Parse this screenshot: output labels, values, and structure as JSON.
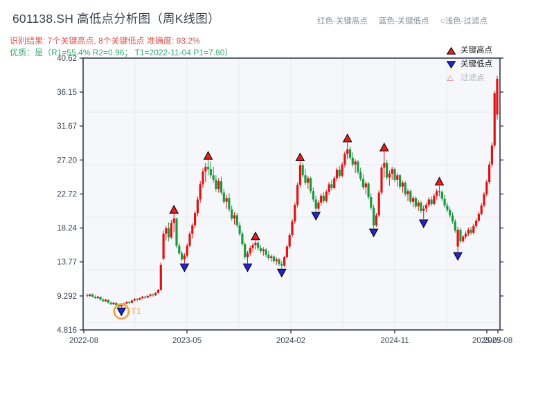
{
  "header": {
    "title": "601138.SH 高低点分析图（周K线图）",
    "result_line": "识别结果: 7个关键高点, 8个关键低点  准确度: 93.2%",
    "quality_line": "优质：是（R1=55.4%  R2=0.96； T1=2022-11-04 P1=7.80）",
    "legend_inline": [
      {
        "label": "红色-关键高点"
      },
      {
        "label": "蓝色-关键低点"
      },
      {
        "label": "○浅色-过滤点"
      }
    ]
  },
  "chart_legend": {
    "high_label": "关键高点",
    "low_label": "关键低点",
    "filtered_label": "过滤点"
  },
  "colors": {
    "up_candle": "#e01212",
    "down_candle": "#169a3c",
    "key_high_marker": "#e41f1f",
    "key_low_marker": "#2323d2",
    "marker_edge": "#000000",
    "t1_ring": "#f0a13c",
    "t1_text": "#f3bd7e",
    "result_text": "#e04f4a",
    "quality_text": "#3aa873",
    "legend_gray": "#838d97",
    "axis_text": "#3e4655",
    "spine": "#2e3950",
    "plot_bg": "#f6f7fa",
    "grid": "#e5e8ee"
  },
  "chart_data": {
    "type": "candlestick",
    "symbol": "601138.SH",
    "period": "weekly",
    "title": "601138.SH 高低点分析图（周K线图）",
    "ylim": [
      4.816,
      40.62
    ],
    "y_ticks": [
      {
        "value": 40.62,
        "label": "40.62"
      },
      {
        "value": 36.15,
        "label": "36.15"
      },
      {
        "value": 31.67,
        "label": "31.67"
      },
      {
        "value": 27.2,
        "label": "27.20"
      },
      {
        "value": 22.72,
        "label": "22.72"
      },
      {
        "value": 18.24,
        "label": "18.24"
      },
      {
        "value": 13.77,
        "label": "13.77"
      },
      {
        "value": 9.292,
        "label": "9.292"
      },
      {
        "value": 4.816,
        "label": "4.816"
      }
    ],
    "x_ticks": [
      {
        "px": 121,
        "label": "2022-08"
      },
      {
        "px": 270,
        "label": "2023-05"
      },
      {
        "px": 420,
        "label": "2024-02"
      },
      {
        "px": 570,
        "label": "2024-11"
      },
      {
        "px": 703,
        "label": "2025-07"
      },
      {
        "px": 719,
        "label": "2025-08"
      }
    ],
    "candles": [
      [
        9.4,
        9.6,
        9.1,
        9.3
      ],
      [
        9.3,
        9.6,
        9.2,
        9.5
      ],
      [
        9.5,
        9.6,
        9.1,
        9.2
      ],
      [
        9.2,
        9.4,
        8.9,
        9.0
      ],
      [
        9.0,
        9.3,
        8.9,
        9.2
      ],
      [
        9.2,
        9.2,
        8.7,
        8.8
      ],
      [
        8.8,
        9.0,
        8.5,
        8.6
      ],
      [
        8.6,
        8.9,
        8.5,
        8.8
      ],
      [
        8.8,
        8.8,
        8.3,
        8.4
      ],
      [
        8.4,
        8.6,
        8.1,
        8.2
      ],
      [
        8.2,
        8.5,
        8.1,
        8.4
      ],
      [
        8.4,
        8.4,
        8.0,
        8.1
      ],
      [
        8.1,
        8.2,
        7.8,
        7.9
      ],
      [
        7.9,
        8.2,
        7.8,
        8.1
      ],
      [
        8.1,
        8.4,
        8.0,
        8.3
      ],
      [
        8.3,
        8.6,
        8.2,
        8.5
      ],
      [
        8.5,
        8.6,
        8.2,
        8.4
      ],
      [
        8.4,
        8.8,
        8.3,
        8.7
      ],
      [
        8.7,
        9.0,
        8.6,
        8.9
      ],
      [
        8.9,
        9.0,
        8.6,
        8.8
      ],
      [
        8.8,
        9.1,
        8.7,
        9.0
      ],
      [
        9.0,
        9.3,
        8.9,
        9.2
      ],
      [
        9.2,
        9.3,
        8.9,
        9.1
      ],
      [
        9.1,
        9.4,
        9.0,
        9.3
      ],
      [
        9.3,
        9.6,
        9.2,
        9.5
      ],
      [
        9.5,
        9.6,
        9.2,
        9.4
      ],
      [
        9.4,
        9.8,
        9.3,
        9.7
      ],
      [
        9.7,
        10.2,
        9.6,
        10.1
      ],
      [
        10.1,
        13.7,
        10.0,
        13.4
      ],
      [
        14.2,
        17.9,
        14.0,
        17.5
      ],
      [
        17.5,
        18.5,
        16.6,
        18.2
      ],
      [
        18.2,
        19.0,
        16.5,
        17.0
      ],
      [
        17.0,
        19.3,
        16.8,
        18.9
      ],
      [
        18.9,
        20.1,
        17.7,
        19.5
      ],
      [
        19.5,
        19.6,
        15.6,
        15.9
      ],
      [
        15.9,
        16.3,
        14.7,
        14.9
      ],
      [
        14.9,
        15.2,
        13.9,
        14.1
      ],
      [
        14.1,
        14.9,
        13.6,
        14.6
      ],
      [
        14.6,
        16.2,
        14.3,
        15.9
      ],
      [
        15.9,
        17.8,
        15.7,
        17.5
      ],
      [
        17.5,
        18.9,
        16.9,
        18.6
      ],
      [
        18.6,
        20.5,
        18.2,
        20.2
      ],
      [
        20.2,
        22.4,
        19.8,
        22.0
      ],
      [
        22.0,
        24.4,
        21.6,
        24.0
      ],
      [
        24.0,
        26.1,
        23.5,
        25.7
      ],
      [
        25.7,
        26.8,
        24.3,
        26.3
      ],
      [
        26.3,
        27.2,
        25.2,
        26.0
      ],
      [
        26.0,
        27.0,
        24.8,
        25.2
      ],
      [
        25.2,
        26.3,
        24.2,
        24.6
      ],
      [
        24.6,
        25.2,
        23.0,
        23.4
      ],
      [
        23.4,
        24.8,
        22.9,
        24.4
      ],
      [
        24.4,
        25.0,
        22.6,
        22.9
      ],
      [
        22.9,
        23.4,
        21.4,
        21.7
      ],
      [
        21.7,
        22.6,
        20.8,
        22.2
      ],
      [
        22.2,
        22.8,
        20.4,
        20.7
      ],
      [
        20.7,
        21.2,
        19.2,
        19.5
      ],
      [
        19.5,
        20.3,
        18.7,
        19.9
      ],
      [
        19.9,
        20.2,
        18.3,
        18.6
      ],
      [
        18.6,
        19.0,
        17.2,
        17.5
      ],
      [
        17.5,
        17.8,
        15.9,
        16.1
      ],
      [
        16.1,
        16.4,
        14.1,
        14.4
      ],
      [
        14.4,
        15.2,
        13.6,
        14.9
      ],
      [
        14.9,
        15.9,
        14.6,
        15.6
      ],
      [
        15.6,
        16.3,
        15.1,
        16.0
      ],
      [
        16.0,
        16.6,
        15.4,
        16.3
      ],
      [
        16.3,
        16.5,
        15.3,
        15.6
      ],
      [
        15.6,
        16.0,
        14.9,
        15.2
      ],
      [
        15.2,
        15.7,
        14.6,
        15.4
      ],
      [
        15.4,
        15.6,
        14.4,
        14.7
      ],
      [
        14.7,
        15.2,
        14.0,
        14.3
      ],
      [
        14.3,
        14.8,
        13.8,
        14.5
      ],
      [
        14.5,
        14.7,
        13.6,
        13.9
      ],
      [
        13.9,
        14.4,
        13.4,
        14.1
      ],
      [
        14.1,
        14.3,
        13.2,
        13.5
      ],
      [
        13.5,
        13.9,
        12.9,
        13.3
      ],
      [
        13.3,
        14.6,
        13.1,
        14.4
      ],
      [
        14.4,
        16.0,
        14.2,
        15.8
      ],
      [
        15.8,
        17.6,
        15.5,
        17.3
      ],
      [
        17.3,
        19.4,
        17.0,
        19.1
      ],
      [
        19.1,
        21.6,
        18.8,
        21.3
      ],
      [
        21.3,
        24.2,
        21.0,
        23.9
      ],
      [
        23.9,
        27.0,
        23.6,
        26.5
      ],
      [
        26.5,
        26.8,
        24.9,
        25.2
      ],
      [
        25.2,
        26.0,
        23.9,
        24.2
      ],
      [
        24.2,
        25.1,
        23.4,
        24.8
      ],
      [
        24.8,
        25.0,
        22.8,
        23.1
      ],
      [
        23.1,
        23.6,
        21.7,
        22.0
      ],
      [
        22.0,
        22.5,
        20.4,
        20.8
      ],
      [
        20.8,
        21.9,
        20.5,
        21.6
      ],
      [
        21.6,
        22.8,
        21.2,
        22.5
      ],
      [
        22.5,
        23.0,
        21.5,
        21.8
      ],
      [
        21.8,
        23.3,
        21.6,
        23.0
      ],
      [
        23.0,
        24.3,
        22.6,
        24.0
      ],
      [
        24.0,
        24.6,
        23.2,
        23.5
      ],
      [
        23.5,
        25.1,
        23.3,
        24.8
      ],
      [
        24.8,
        26.2,
        24.4,
        25.9
      ],
      [
        25.9,
        26.4,
        24.8,
        25.1
      ],
      [
        25.1,
        26.9,
        24.9,
        26.6
      ],
      [
        26.6,
        28.3,
        26.2,
        28.0
      ],
      [
        28.0,
        29.5,
        27.3,
        28.6
      ],
      [
        28.6,
        29.0,
        27.2,
        27.5
      ],
      [
        27.5,
        28.2,
        26.3,
        26.6
      ],
      [
        26.6,
        27.3,
        25.5,
        27.0
      ],
      [
        27.0,
        27.2,
        25.3,
        25.6
      ],
      [
        25.6,
        26.2,
        24.4,
        24.7
      ],
      [
        24.7,
        25.3,
        23.3,
        23.6
      ],
      [
        23.6,
        24.4,
        22.7,
        24.1
      ],
      [
        24.1,
        24.3,
        22.0,
        22.3
      ],
      [
        22.3,
        22.8,
        20.6,
        20.9
      ],
      [
        20.9,
        21.3,
        18.2,
        18.6
      ],
      [
        18.6,
        20.2,
        18.4,
        19.9
      ],
      [
        19.9,
        23.2,
        19.7,
        22.9
      ],
      [
        22.9,
        26.6,
        22.6,
        26.2
      ],
      [
        26.2,
        28.3,
        24.9,
        26.8
      ],
      [
        26.8,
        27.2,
        24.6,
        24.9
      ],
      [
        24.9,
        25.8,
        23.8,
        25.4
      ],
      [
        25.4,
        26.3,
        24.6,
        26.0
      ],
      [
        26.0,
        26.2,
        24.3,
        24.6
      ],
      [
        24.6,
        25.5,
        23.7,
        25.2
      ],
      [
        25.2,
        25.4,
        23.4,
        23.7
      ],
      [
        23.7,
        24.5,
        22.9,
        24.2
      ],
      [
        24.2,
        24.4,
        22.4,
        22.7
      ],
      [
        22.7,
        23.4,
        21.8,
        23.1
      ],
      [
        23.1,
        23.3,
        21.4,
        21.7
      ],
      [
        21.7,
        22.5,
        21.0,
        22.2
      ],
      [
        22.2,
        22.4,
        20.8,
        21.1
      ],
      [
        21.1,
        21.9,
        20.5,
        21.6
      ],
      [
        21.6,
        21.8,
        20.2,
        20.5
      ],
      [
        20.5,
        21.2,
        19.4,
        20.8
      ],
      [
        20.8,
        21.6,
        20.3,
        21.3
      ],
      [
        21.3,
        22.3,
        21.0,
        22.0
      ],
      [
        22.0,
        22.4,
        21.1,
        21.4
      ],
      [
        21.4,
        22.8,
        21.2,
        22.5
      ],
      [
        22.5,
        23.4,
        22.0,
        23.1
      ],
      [
        23.1,
        23.8,
        22.4,
        23.0
      ],
      [
        23.0,
        23.2,
        21.8,
        22.1
      ],
      [
        22.1,
        22.6,
        20.9,
        21.2
      ],
      [
        21.2,
        21.6,
        20.3,
        20.6
      ],
      [
        20.6,
        21.0,
        19.6,
        19.9
      ],
      [
        19.9,
        20.3,
        18.8,
        19.1
      ],
      [
        19.1,
        19.4,
        17.6,
        17.9
      ],
      [
        15.8,
        18.4,
        15.1,
        18.0
      ],
      [
        18.0,
        18.2,
        16.2,
        16.5
      ],
      [
        16.5,
        17.3,
        16.3,
        17.1
      ],
      [
        17.1,
        17.8,
        16.8,
        17.5
      ],
      [
        17.5,
        18.3,
        17.2,
        18.0
      ],
      [
        18.0,
        18.4,
        17.3,
        17.6
      ],
      [
        17.6,
        18.8,
        17.4,
        18.5
      ],
      [
        18.5,
        19.5,
        18.2,
        19.2
      ],
      [
        19.2,
        20.4,
        19.0,
        20.1
      ],
      [
        20.1,
        21.5,
        19.9,
        21.2
      ],
      [
        21.2,
        23.0,
        21.0,
        22.7
      ],
      [
        22.7,
        24.6,
        22.4,
        24.3
      ],
      [
        24.3,
        27.0,
        24.0,
        26.6
      ],
      [
        26.6,
        29.5,
        26.2,
        29.1
      ],
      [
        29.1,
        36.3,
        28.8,
        36.0
      ],
      [
        33.2,
        38.3,
        32.5,
        37.9
      ]
    ],
    "key_highs": [
      {
        "i": 33,
        "price": 20.1
      },
      {
        "i": 46,
        "price": 27.2
      },
      {
        "i": 64,
        "price": 16.6
      },
      {
        "i": 81,
        "price": 27.0
      },
      {
        "i": 99,
        "price": 29.5
      },
      {
        "i": 113,
        "price": 28.3
      },
      {
        "i": 134,
        "price": 23.8
      }
    ],
    "key_lows": [
      {
        "i": 13,
        "price": 7.8
      },
      {
        "i": 37,
        "price": 13.6
      },
      {
        "i": 61,
        "price": 13.6
      },
      {
        "i": 74,
        "price": 12.9
      },
      {
        "i": 87,
        "price": 20.4
      },
      {
        "i": 109,
        "price": 18.2
      },
      {
        "i": 128,
        "price": 19.4
      },
      {
        "i": 141,
        "price": 15.1
      }
    ],
    "t1_annotation": {
      "i": 13,
      "price": 7.8,
      "label": "T1",
      "date": "2022-11-04",
      "p1": "7.80"
    }
  }
}
